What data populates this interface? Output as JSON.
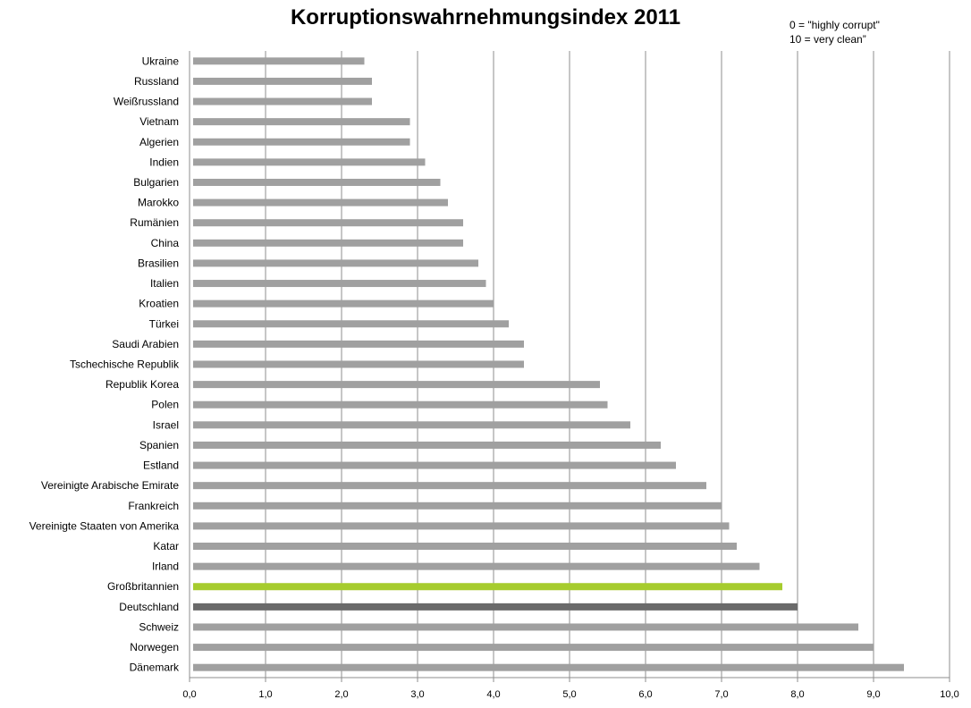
{
  "chart_data": {
    "type": "bar",
    "orientation": "horizontal",
    "title": "Korruptionswahrnehmungsindex 2011",
    "annotation": [
      "0 = \"highly corrupt\"",
      "10 = very clean”"
    ],
    "xlim": [
      0,
      10
    ],
    "x_ticks": [
      "0,0",
      "1,0",
      "2,0",
      "3,0",
      "4,0",
      "5,0",
      "6,0",
      "7,0",
      "8,0",
      "9,0",
      "10,0"
    ],
    "grid": "vertical",
    "categories": [
      "Ukraine",
      "Russland",
      "Weißrussland",
      "Vietnam",
      "Algerien",
      "Indien",
      "Bulgarien",
      "Marokko",
      "Rumänien",
      "China",
      "Brasilien",
      "Italien",
      "Kroatien",
      "Türkei",
      "Saudi Arabien",
      "Tschechische Republik",
      "Republik Korea",
      "Polen",
      "Israel",
      "Spanien",
      "Estland",
      "Vereinigte Arabische Emirate",
      "Frankreich",
      "Vereinigte Staaten von Amerika",
      "Katar",
      "Irland",
      "Großbritannien",
      "Deutschland",
      "Schweiz",
      "Norwegen",
      "Dänemark"
    ],
    "values": [
      2.3,
      2.4,
      2.4,
      2.9,
      2.9,
      3.1,
      3.3,
      3.4,
      3.6,
      3.6,
      3.8,
      3.9,
      4.0,
      4.2,
      4.4,
      4.4,
      5.4,
      5.5,
      5.8,
      6.2,
      6.4,
      6.8,
      7.0,
      7.1,
      7.2,
      7.5,
      7.8,
      8.0,
      8.8,
      9.0,
      9.4
    ],
    "colors": {
      "default": "#a0a0a0",
      "highlight": {
        "Großbritannien": "#a6cc2e",
        "Deutschland": "#6a6a6a"
      },
      "grid": "#8c8c8c",
      "axis": "#8c8c8c"
    }
  }
}
